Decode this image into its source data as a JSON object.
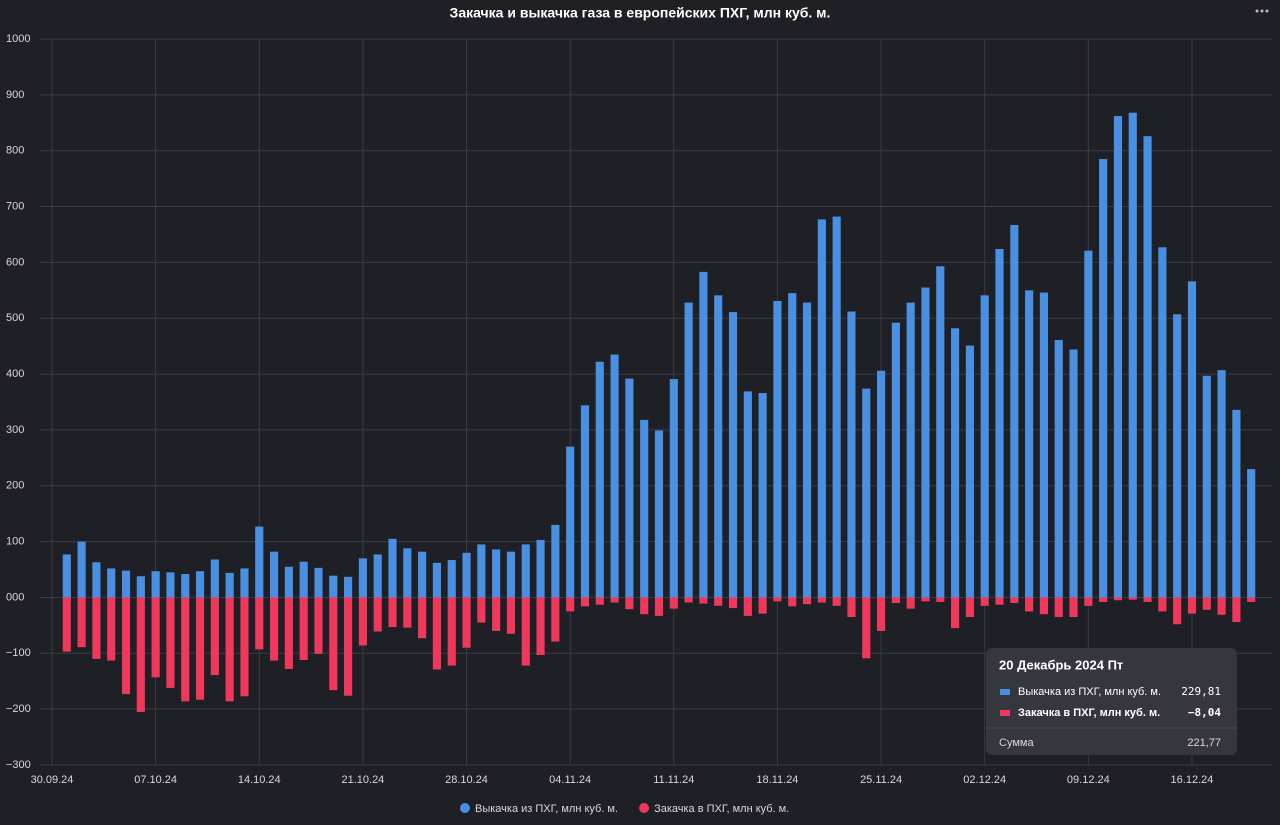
{
  "chart_data": {
    "type": "bar",
    "title": "Закачка и выкачка газа в европейских ПХГ, млн куб. м.",
    "x": [
      "2024-10-01",
      "2024-10-02",
      "2024-10-03",
      "2024-10-04",
      "2024-10-05",
      "2024-10-06",
      "2024-10-07",
      "2024-10-08",
      "2024-10-09",
      "2024-10-10",
      "2024-10-11",
      "2024-10-12",
      "2024-10-13",
      "2024-10-14",
      "2024-10-15",
      "2024-10-16",
      "2024-10-17",
      "2024-10-18",
      "2024-10-19",
      "2024-10-20",
      "2024-10-21",
      "2024-10-22",
      "2024-10-23",
      "2024-10-24",
      "2024-10-25",
      "2024-10-26",
      "2024-10-27",
      "2024-10-28",
      "2024-10-29",
      "2024-10-30",
      "2024-10-31",
      "2024-11-01",
      "2024-11-02",
      "2024-11-03",
      "2024-11-04",
      "2024-11-05",
      "2024-11-06",
      "2024-11-07",
      "2024-11-08",
      "2024-11-09",
      "2024-11-10",
      "2024-11-11",
      "2024-11-12",
      "2024-11-13",
      "2024-11-14",
      "2024-11-15",
      "2024-11-16",
      "2024-11-17",
      "2024-11-18",
      "2024-11-19",
      "2024-11-20",
      "2024-11-21",
      "2024-11-22",
      "2024-11-23",
      "2024-11-24",
      "2024-11-25",
      "2024-11-26",
      "2024-11-27",
      "2024-11-28",
      "2024-11-29",
      "2024-11-30",
      "2024-12-01",
      "2024-12-02",
      "2024-12-03",
      "2024-12-04",
      "2024-12-05",
      "2024-12-06",
      "2024-12-07",
      "2024-12-08",
      "2024-12-09",
      "2024-12-10",
      "2024-12-11",
      "2024-12-12",
      "2024-12-13",
      "2024-12-14",
      "2024-12-15",
      "2024-12-16",
      "2024-12-17",
      "2024-12-18",
      "2024-12-19",
      "2024-12-20"
    ],
    "series": [
      {
        "name": "Выкачка из ПХГ, млн куб. м.",
        "color": "#4a90e2",
        "values": [
          77,
          100,
          63,
          52,
          48,
          38,
          47,
          45,
          42,
          47,
          68,
          44,
          52,
          127,
          82,
          55,
          64,
          53,
          39,
          37,
          70,
          77,
          105,
          88,
          82,
          62,
          67,
          80,
          95,
          86,
          82,
          95,
          103,
          130,
          270,
          344,
          422,
          435,
          392,
          318,
          299,
          391,
          528,
          583,
          541,
          511,
          369,
          366,
          531,
          545,
          528,
          677,
          682,
          512,
          374,
          406,
          492,
          528,
          555,
          593,
          482,
          451,
          541,
          624,
          667,
          550,
          546,
          461,
          444,
          621,
          785,
          862,
          868,
          826,
          627,
          507,
          566,
          397,
          407,
          336,
          229.81
        ]
      },
      {
        "name": "Закачка в ПХГ, млн куб. м.",
        "color": "#f0385c",
        "values": [
          -97,
          -89,
          -110,
          -113,
          -173,
          -205,
          -143,
          -162,
          -186,
          -183,
          -139,
          -186,
          -177,
          -93,
          -113,
          -128,
          -112,
          -101,
          -166,
          -176,
          -86,
          -61,
          -53,
          -54,
          -73,
          -129,
          -122,
          -90,
          -45,
          -60,
          -65,
          -122,
          -103,
          -79,
          -25,
          -16,
          -13,
          -9,
          -21,
          -30,
          -33,
          -20,
          -9,
          -11,
          -15,
          -19,
          -33,
          -29,
          -7,
          -16,
          -12,
          -9,
          -15,
          -35,
          -109,
          -60,
          -10,
          -20,
          -7,
          -8,
          -55,
          -35,
          -15,
          -13,
          -10,
          -25,
          -30,
          -35,
          -35,
          -15,
          -8,
          -5,
          -4,
          -8,
          -25,
          -48,
          -29,
          -22,
          -31,
          -44,
          -8.04
        ]
      }
    ],
    "xlim": [
      "2024-09-30",
      "2024-12-21"
    ],
    "xticks": [
      {
        "value": "2024-09-30",
        "label": "30.09.24"
      },
      {
        "value": "2024-10-07",
        "label": "07.10.24"
      },
      {
        "value": "2024-10-14",
        "label": "14.10.24"
      },
      {
        "value": "2024-10-21",
        "label": "21.10.24"
      },
      {
        "value": "2024-10-28",
        "label": "28.10.24"
      },
      {
        "value": "2024-11-04",
        "label": "04.11.24"
      },
      {
        "value": "2024-11-11",
        "label": "11.11.24"
      },
      {
        "value": "2024-11-18",
        "label": "18.11.24"
      },
      {
        "value": "2024-11-25",
        "label": "25.11.24"
      },
      {
        "value": "2024-12-02",
        "label": "02.12.24"
      },
      {
        "value": "2024-12-09",
        "label": "09.12.24"
      },
      {
        "value": "2024-12-16",
        "label": "16.12.24"
      }
    ],
    "ylim": [
      -300,
      1000
    ],
    "yticks": [
      {
        "value": -300,
        "label": "−300"
      },
      {
        "value": -200,
        "label": "−200"
      },
      {
        "value": -100,
        "label": "−100"
      },
      {
        "value": 0,
        "label": "000"
      },
      100,
      200,
      300,
      400,
      500,
      600,
      700,
      800,
      900,
      1000
    ],
    "grid": true,
    "legend": "bottom",
    "tooltip": {
      "title": "20 Декабрь 2024 Пт",
      "rows": [
        {
          "value": 229.81,
          "label": "229,81"
        },
        {
          "value": -8.04,
          "label": "−8,04"
        }
      ],
      "total": {
        "name": "Сумма",
        "value": 221.77,
        "label": "221,77"
      }
    }
  }
}
